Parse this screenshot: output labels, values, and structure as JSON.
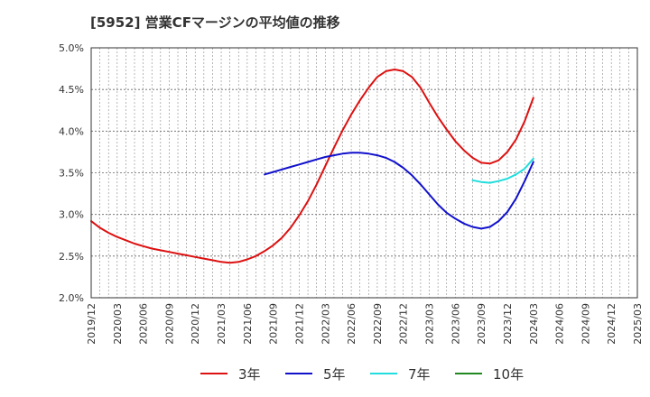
{
  "title": "[5952]  営業CFマージンの平均値の推移",
  "chart_data": {
    "type": "line",
    "title": "[5952]  営業CFマージンの平均値の推移",
    "xlabel": "",
    "ylabel": "",
    "y_ticks": [
      "5.0%",
      "4.5%",
      "4.0%",
      "3.5%",
      "3.0%",
      "2.5%",
      "2.0%"
    ],
    "ylim": [
      2.0,
      5.0
    ],
    "x_ticks": [
      "2019/12",
      "2020/03",
      "2020/06",
      "2020/09",
      "2020/12",
      "2021/03",
      "2021/06",
      "2021/09",
      "2021/12",
      "2022/03",
      "2022/06",
      "2022/09",
      "2022/12",
      "2023/03",
      "2023/06",
      "2023/09",
      "2023/12",
      "2024/03",
      "2024/06",
      "2024/09",
      "2024/12",
      "2025/03"
    ],
    "grid": true,
    "legend_position": "bottom",
    "series": [
      {
        "name": "3年",
        "color": "#dd1111",
        "x": [
          "2019/12",
          "2020/01",
          "2020/02",
          "2020/03",
          "2020/04",
          "2020/05",
          "2020/06",
          "2020/07",
          "2020/08",
          "2020/09",
          "2020/10",
          "2020/11",
          "2020/12",
          "2021/01",
          "2021/02",
          "2021/03",
          "2021/04",
          "2021/05",
          "2021/06",
          "2021/07",
          "2021/08",
          "2021/09",
          "2021/10",
          "2021/11",
          "2021/12",
          "2022/01",
          "2022/02",
          "2022/03",
          "2022/04",
          "2022/05",
          "2022/06",
          "2022/07",
          "2022/08",
          "2022/09",
          "2022/10",
          "2022/11",
          "2022/12",
          "2023/01",
          "2023/02",
          "2023/03",
          "2023/04",
          "2023/05",
          "2023/06",
          "2023/07",
          "2023/08",
          "2023/09",
          "2023/10",
          "2023/11",
          "2023/12",
          "2024/01",
          "2024/02",
          "2024/03"
        ],
        "values": [
          2.92,
          2.84,
          2.78,
          2.73,
          2.69,
          2.65,
          2.62,
          2.59,
          2.57,
          2.55,
          2.53,
          2.51,
          2.49,
          2.47,
          2.45,
          2.43,
          2.42,
          2.43,
          2.46,
          2.5,
          2.56,
          2.63,
          2.72,
          2.84,
          2.99,
          3.16,
          3.36,
          3.58,
          3.8,
          4.01,
          4.2,
          4.37,
          4.52,
          4.65,
          4.72,
          4.74,
          4.72,
          4.65,
          4.52,
          4.34,
          4.17,
          4.02,
          3.88,
          3.77,
          3.68,
          3.62,
          3.61,
          3.65,
          3.75,
          3.9,
          4.12,
          4.4
        ]
      },
      {
        "name": "5年",
        "color": "#1111cc",
        "x": [
          "2021/08",
          "2021/09",
          "2021/10",
          "2021/11",
          "2021/12",
          "2022/01",
          "2022/02",
          "2022/03",
          "2022/04",
          "2022/05",
          "2022/06",
          "2022/07",
          "2022/08",
          "2022/09",
          "2022/10",
          "2022/11",
          "2022/12",
          "2023/01",
          "2023/02",
          "2023/03",
          "2023/04",
          "2023/05",
          "2023/06",
          "2023/07",
          "2023/08",
          "2023/09",
          "2023/10",
          "2023/11",
          "2023/12",
          "2024/01",
          "2024/02",
          "2024/03"
        ],
        "values": [
          3.48,
          3.51,
          3.54,
          3.57,
          3.6,
          3.63,
          3.66,
          3.69,
          3.71,
          3.73,
          3.74,
          3.74,
          3.73,
          3.71,
          3.68,
          3.63,
          3.56,
          3.47,
          3.36,
          3.24,
          3.12,
          3.02,
          2.95,
          2.89,
          2.85,
          2.83,
          2.85,
          2.92,
          3.03,
          3.19,
          3.4,
          3.63
        ]
      },
      {
        "name": "7年",
        "color": "#22dddd",
        "x": [
          "2023/08",
          "2023/09",
          "2023/10",
          "2023/11",
          "2023/12",
          "2024/01",
          "2024/02",
          "2024/03"
        ],
        "values": [
          3.41,
          3.39,
          3.38,
          3.4,
          3.43,
          3.48,
          3.55,
          3.67
        ]
      },
      {
        "name": "10年",
        "color": "#228822",
        "x": [],
        "values": []
      }
    ]
  }
}
